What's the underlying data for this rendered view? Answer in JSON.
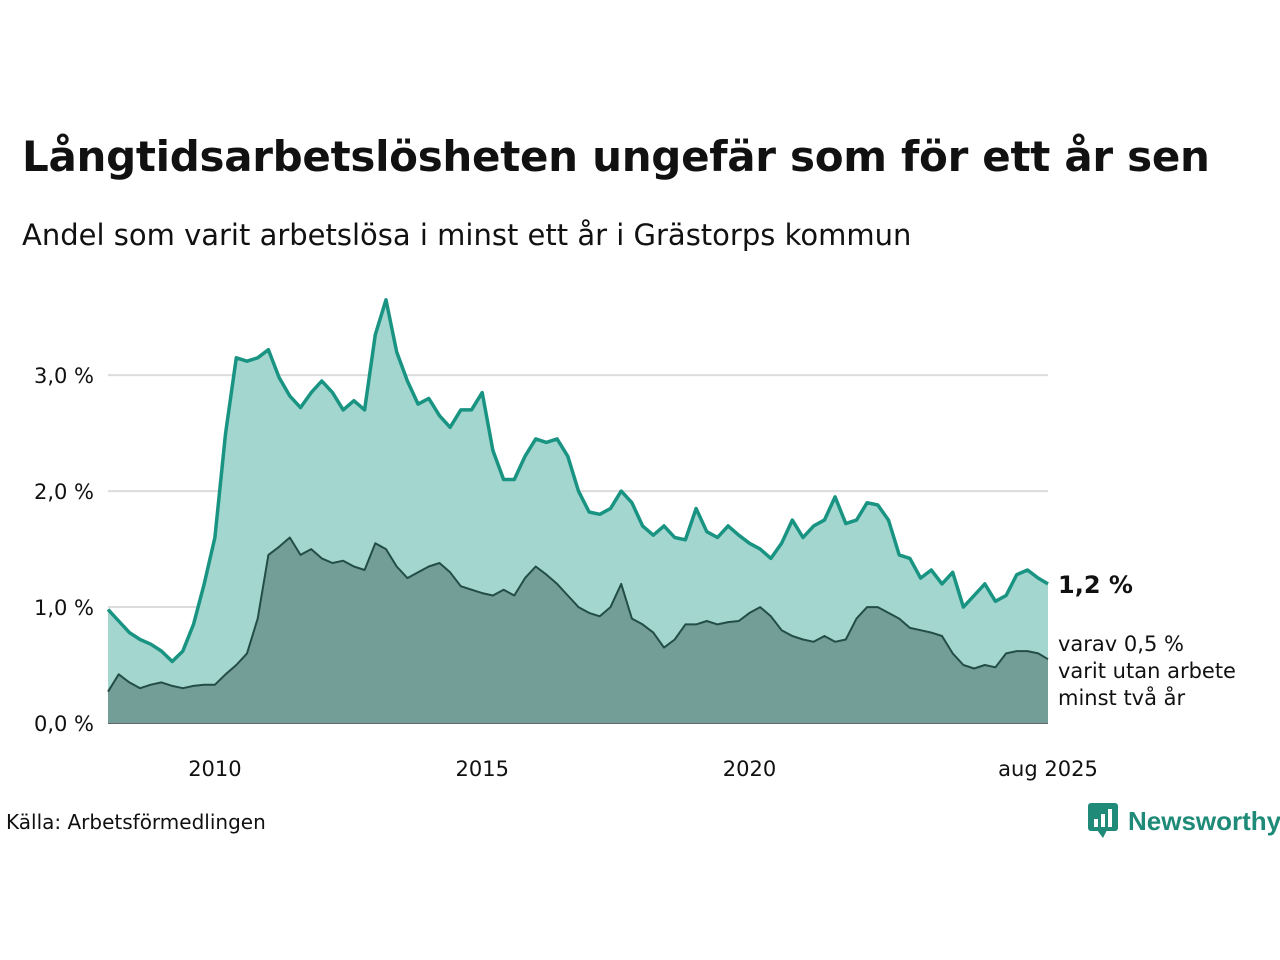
{
  "title": "Långtidsarbetslösheten ungefär som för ett år sen",
  "subtitle": "Andel som varit arbetslösa i minst ett år i Grästorps kommun",
  "source": "Källa: Arbetsförmedlingen",
  "brand": {
    "name": "Newsworthy",
    "logo_icon": "bar-chart-speech-bubble-icon"
  },
  "colors": {
    "upper_line": "#1a9482",
    "upper_fill": "#a3d6cf",
    "lower_line": "#234d47",
    "lower_fill": "#729e97",
    "grid": "#dcdcdc"
  },
  "chart_data": {
    "type": "area",
    "x_tick_labels": [
      "2010",
      "2015",
      "2020",
      "aug 2025"
    ],
    "x_ticks": [
      2010.0,
      2015.0,
      2020.0,
      2025.583
    ],
    "y_tick_labels": [
      "0,0 %",
      "1,0 %",
      "2,0 %",
      "3,0 %"
    ],
    "y_ticks": [
      0,
      1,
      2,
      3
    ],
    "xlim": [
      2008.0,
      2025.583
    ],
    "ylim": [
      0,
      3.7
    ],
    "grid": true,
    "end_labels": {
      "total": "1,2 %",
      "longterm": [
        "varav 0,5 %",
        "varit utan arbete",
        "minst två år"
      ]
    },
    "series": [
      {
        "key": "total",
        "x": [
          2008.0,
          2008.2,
          2008.4,
          2008.6,
          2008.8,
          2009.0,
          2009.2,
          2009.4,
          2009.6,
          2009.8,
          2010.0,
          2010.2,
          2010.4,
          2010.6,
          2010.8,
          2011.0,
          2011.2,
          2011.4,
          2011.6,
          2011.8,
          2012.0,
          2012.2,
          2012.4,
          2012.6,
          2012.8,
          2013.0,
          2013.2,
          2013.4,
          2013.6,
          2013.8,
          2014.0,
          2014.2,
          2014.4,
          2014.6,
          2014.8,
          2015.0,
          2015.2,
          2015.4,
          2015.6,
          2015.8,
          2016.0,
          2016.2,
          2016.4,
          2016.6,
          2016.8,
          2017.0,
          2017.2,
          2017.4,
          2017.6,
          2017.8,
          2018.0,
          2018.2,
          2018.4,
          2018.6,
          2018.8,
          2019.0,
          2019.2,
          2019.4,
          2019.6,
          2019.8,
          2020.0,
          2020.2,
          2020.4,
          2020.6,
          2020.8,
          2021.0,
          2021.2,
          2021.4,
          2021.6,
          2021.8,
          2022.0,
          2022.2,
          2022.4,
          2022.6,
          2022.8,
          2023.0,
          2023.2,
          2023.4,
          2023.6,
          2023.8,
          2024.0,
          2024.2,
          2024.4,
          2024.6,
          2024.8,
          2025.0,
          2025.2,
          2025.4,
          2025.583
        ],
        "values": [
          0.98,
          0.88,
          0.78,
          0.72,
          0.68,
          0.62,
          0.53,
          0.62,
          0.85,
          1.2,
          1.6,
          2.5,
          3.15,
          3.12,
          3.15,
          3.22,
          2.98,
          2.82,
          2.72,
          2.85,
          2.95,
          2.85,
          2.7,
          2.78,
          2.7,
          3.35,
          3.65,
          3.2,
          2.95,
          2.75,
          2.8,
          2.65,
          2.55,
          2.7,
          2.7,
          2.85,
          2.35,
          2.1,
          2.1,
          2.3,
          2.45,
          2.42,
          2.45,
          2.3,
          2.0,
          1.82,
          1.8,
          1.85,
          2.0,
          1.9,
          1.7,
          1.62,
          1.7,
          1.6,
          1.58,
          1.85,
          1.65,
          1.6,
          1.7,
          1.62,
          1.55,
          1.5,
          1.42,
          1.55,
          1.75,
          1.6,
          1.7,
          1.75,
          1.95,
          1.72,
          1.75,
          1.9,
          1.88,
          1.75,
          1.45,
          1.42,
          1.25,
          1.32,
          1.2,
          1.3,
          1.0,
          1.1,
          1.2,
          1.05,
          1.1,
          1.28,
          1.32,
          1.25,
          1.2
        ]
      },
      {
        "key": "longterm",
        "x": [
          2008.0,
          2008.2,
          2008.4,
          2008.6,
          2008.8,
          2009.0,
          2009.2,
          2009.4,
          2009.6,
          2009.8,
          2010.0,
          2010.2,
          2010.4,
          2010.6,
          2010.8,
          2011.0,
          2011.2,
          2011.4,
          2011.6,
          2011.8,
          2012.0,
          2012.2,
          2012.4,
          2012.6,
          2012.8,
          2013.0,
          2013.2,
          2013.4,
          2013.6,
          2013.8,
          2014.0,
          2014.2,
          2014.4,
          2014.6,
          2014.8,
          2015.0,
          2015.2,
          2015.4,
          2015.6,
          2015.8,
          2016.0,
          2016.2,
          2016.4,
          2016.6,
          2016.8,
          2017.0,
          2017.2,
          2017.4,
          2017.6,
          2017.8,
          2018.0,
          2018.2,
          2018.4,
          2018.6,
          2018.8,
          2019.0,
          2019.2,
          2019.4,
          2019.6,
          2019.8,
          2020.0,
          2020.2,
          2020.4,
          2020.6,
          2020.8,
          2021.0,
          2021.2,
          2021.4,
          2021.6,
          2021.8,
          2022.0,
          2022.2,
          2022.4,
          2022.6,
          2022.8,
          2023.0,
          2023.2,
          2023.4,
          2023.6,
          2023.8,
          2024.0,
          2024.2,
          2024.4,
          2024.6,
          2024.8,
          2025.0,
          2025.2,
          2025.4,
          2025.583
        ],
        "values": [
          0.27,
          0.42,
          0.35,
          0.3,
          0.33,
          0.35,
          0.32,
          0.3,
          0.32,
          0.33,
          0.33,
          0.42,
          0.5,
          0.6,
          0.9,
          1.45,
          1.52,
          1.6,
          1.45,
          1.5,
          1.42,
          1.38,
          1.4,
          1.35,
          1.32,
          1.55,
          1.5,
          1.35,
          1.25,
          1.3,
          1.35,
          1.38,
          1.3,
          1.18,
          1.15,
          1.12,
          1.1,
          1.15,
          1.1,
          1.25,
          1.35,
          1.28,
          1.2,
          1.1,
          1.0,
          0.95,
          0.92,
          1.0,
          1.2,
          0.9,
          0.85,
          0.78,
          0.65,
          0.72,
          0.85,
          0.85,
          0.88,
          0.85,
          0.87,
          0.88,
          0.95,
          1.0,
          0.92,
          0.8,
          0.75,
          0.72,
          0.7,
          0.75,
          0.7,
          0.72,
          0.9,
          1.0,
          1.0,
          0.95,
          0.9,
          0.82,
          0.8,
          0.78,
          0.75,
          0.6,
          0.5,
          0.47,
          0.5,
          0.48,
          0.6,
          0.62,
          0.62,
          0.6,
          0.55
        ]
      }
    ]
  }
}
